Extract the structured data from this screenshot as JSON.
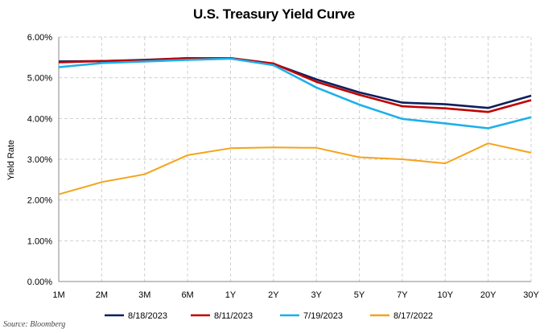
{
  "chart_data": {
    "type": "line",
    "title": "U.S. Treasury Yield Curve",
    "xlabel": "",
    "ylabel": "Yield Rate",
    "categories": [
      "1M",
      "2M",
      "3M",
      "6M",
      "1Y",
      "2Y",
      "3Y",
      "5Y",
      "7Y",
      "10Y",
      "20Y",
      "30Y"
    ],
    "ylim": [
      0,
      6
    ],
    "yticks": [
      "0.00%",
      "1.00%",
      "2.00%",
      "3.00%",
      "4.00%",
      "5.00%",
      "6.00%"
    ],
    "grid": true,
    "legend_position": "bottom",
    "series": [
      {
        "name": "8/18/2023",
        "color": "#0b1f5c",
        "values": [
          5.4,
          5.41,
          5.44,
          5.48,
          5.48,
          5.34,
          4.96,
          4.64,
          4.39,
          4.35,
          4.26,
          4.56
        ]
      },
      {
        "name": "8/11/2023",
        "color": "#c00000",
        "values": [
          5.38,
          5.41,
          5.43,
          5.48,
          5.48,
          5.35,
          4.9,
          4.58,
          4.3,
          4.25,
          4.16,
          4.45
        ]
      },
      {
        "name": "7/19/2023",
        "color": "#1cb0ea",
        "values": [
          5.26,
          5.36,
          5.4,
          5.44,
          5.47,
          5.31,
          4.76,
          4.34,
          3.99,
          3.88,
          3.76,
          4.03
        ]
      },
      {
        "name": "8/17/2022",
        "color": "#f5a31a",
        "values": [
          2.14,
          2.44,
          2.63,
          3.1,
          3.27,
          3.29,
          3.28,
          3.05,
          3.0,
          2.9,
          3.39,
          3.16
        ]
      }
    ]
  },
  "source": "Source: Bloomberg"
}
